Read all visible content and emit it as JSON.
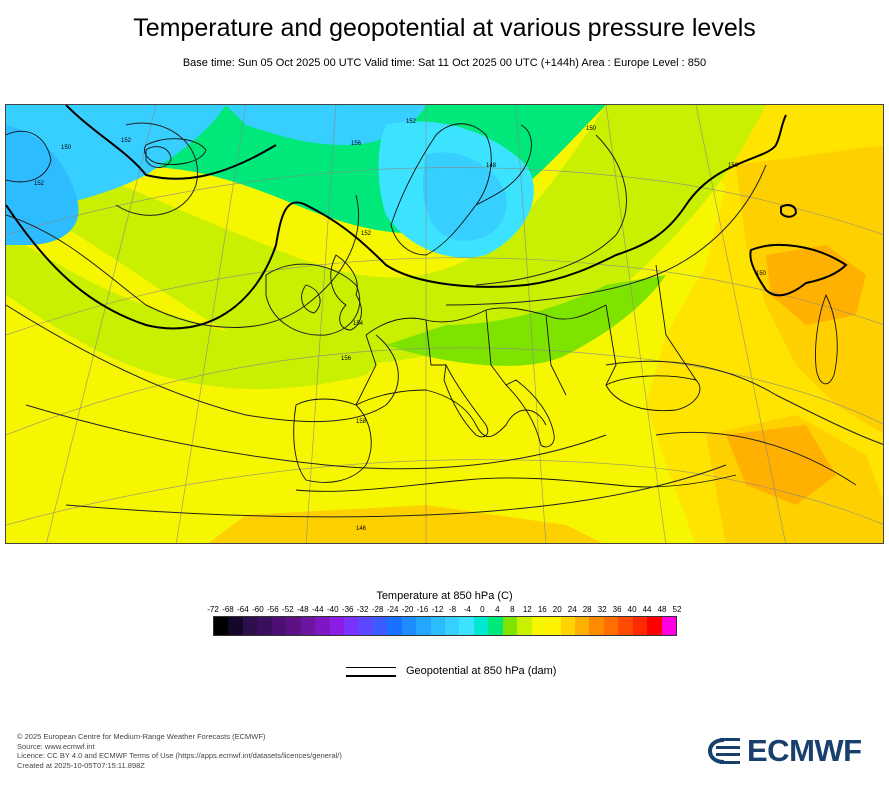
{
  "title": "Temperature and geopotential at various pressure levels",
  "subtitle": "Base time: Sun 05 Oct 2025 00 UTC Valid time: Sat 11 Oct 2025 00 UTC (+144h) Area : Europe Level : 850",
  "map": {
    "contour_labels": [
      "152",
      "150",
      "152",
      "156",
      "152",
      "150",
      "152",
      "150",
      "154",
      "156",
      "158",
      "146",
      "148",
      "150"
    ]
  },
  "legend": {
    "title": "Temperature at 850 hPa (C)",
    "ticks": [
      "-72",
      "-68",
      "-64",
      "-60",
      "-56",
      "-52",
      "-48",
      "-44",
      "-40",
      "-36",
      "-32",
      "-28",
      "-24",
      "-20",
      "-16",
      "-12",
      "-8",
      "-4",
      "0",
      "4",
      "8",
      "12",
      "16",
      "20",
      "24",
      "28",
      "32",
      "36",
      "40",
      "44",
      "48",
      "52"
    ],
    "colors": [
      "#000000",
      "#150729",
      "#2d0f4b",
      "#3b0e5e",
      "#4d0f73",
      "#5c1282",
      "#6c15a0",
      "#7d17c4",
      "#8a1ce5",
      "#7a32ff",
      "#5c49ff",
      "#3d5cff",
      "#1a70ff",
      "#1e8cff",
      "#24a6ff",
      "#2cbcff",
      "#36cfff",
      "#3ce3ff",
      "#00e8d2",
      "#00e87a",
      "#7fe300",
      "#c9f000",
      "#f6f600",
      "#fff200",
      "#ffd200",
      "#ffb000",
      "#ff8c00",
      "#ff6e00",
      "#ff4b00",
      "#ff2a00",
      "#ff0000",
      "#ff00e1"
    ],
    "geopotential_label": "Geopotential at 850 hPa (dam)"
  },
  "footer": {
    "line1": "© 2025 European Centre for Medium-Range Weather Forecasts (ECMWF)",
    "line2": "Source: www.ecmwf.int",
    "line3": "Licence: CC BY 4.0 and ECMWF Terms of Use (https://apps.ecmwf.int/datasets/licences/general/)",
    "line4": "Created at 2025-10-05T07:15:11.898Z"
  },
  "logo_text": "ECMWF",
  "colors": {
    "logo": "#17406d"
  }
}
